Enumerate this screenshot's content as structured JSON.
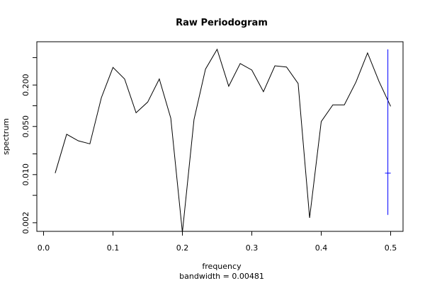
{
  "chart_data": {
    "type": "line",
    "title": "Raw Periodogram",
    "xlabel": "frequency",
    "subtitle": "bandwidth = 0.00481",
    "ylabel": "spectrum",
    "y_scale": "log",
    "xlim": [
      0.0,
      0.5
    ],
    "ylim": [
      0.0015,
      0.85
    ],
    "x_ticks": [
      "0.0",
      "0.1",
      "0.2",
      "0.3",
      "0.4",
      "0.5"
    ],
    "y_tick_labels": [
      "0.002",
      "0.010",
      "0.050",
      "0.200"
    ],
    "y_tick_values": [
      0.002,
      0.005,
      0.01,
      0.02,
      0.05,
      0.1,
      0.2,
      0.5
    ],
    "series": [
      {
        "color": "#000000",
        "x": [
          0.0167,
          0.0333,
          0.05,
          0.0667,
          0.0833,
          0.1,
          0.1167,
          0.1333,
          0.15,
          0.1667,
          0.1833,
          0.2,
          0.2167,
          0.2333,
          0.25,
          0.2667,
          0.2833,
          0.3,
          0.3167,
          0.3333,
          0.35,
          0.3667,
          0.3833,
          0.4,
          0.4167,
          0.4333,
          0.45,
          0.4667,
          0.4833,
          0.5
        ],
        "y": [
          0.0105,
          0.0385,
          0.031,
          0.028,
          0.131,
          0.36,
          0.245,
          0.079,
          0.113,
          0.245,
          0.066,
          0.00145,
          0.063,
          0.34,
          0.66,
          0.192,
          0.41,
          0.33,
          0.16,
          0.38,
          0.365,
          0.21,
          0.00235,
          0.059,
          0.103,
          0.103,
          0.22,
          0.585,
          0.225,
          0.098
        ]
      }
    ],
    "confidence_bar": {
      "color": "#0000ff",
      "x": 0.496,
      "center": 0.0105,
      "upper": 0.66,
      "lower": 0.0026
    }
  }
}
